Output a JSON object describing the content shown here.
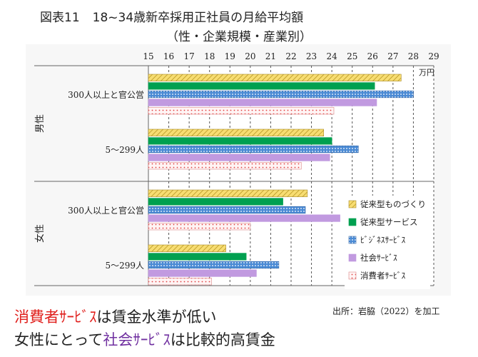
{
  "title": {
    "figure_no": "図表11",
    "main": "18~34歳新卒採用正社員の月給平均額",
    "sub": "（性・企業規模・産業別）"
  },
  "source": "出所：岩脇（2022）を加工",
  "caption": {
    "line1": {
      "highlight": "消費者ｻｰﾋﾞｽ",
      "rest": "は賃金水準が低い"
    },
    "line2": {
      "pre": "女性にとって",
      "highlight": "社会ｻｰﾋﾞｽ",
      "rest": "は比較的高賃金"
    }
  },
  "colors": {
    "highlight_red": "#e0201d",
    "highlight_purple": "#7030a0"
  },
  "chart_data": {
    "type": "bar",
    "orientation": "horizontal",
    "unit_label": "万円",
    "xlim": [
      15,
      29
    ],
    "xticks": [
      "15",
      "16",
      "17",
      "18",
      "19",
      "20",
      "21",
      "22",
      "23",
      "24",
      "25",
      "26",
      "27",
      "28",
      "29"
    ],
    "grid": "vertical dashed",
    "legend_position": "bottom-right",
    "sex_groups": [
      {
        "label": "男性",
        "categories": [
          "300人以上と官公営",
          "5～299人"
        ]
      },
      {
        "label": "女性",
        "categories": [
          "300人以上と官公営",
          "5～299人"
        ]
      }
    ],
    "series": [
      {
        "name": "従来型ものづくり",
        "color": "#f7dd72",
        "pattern": "hatch",
        "values": [
          27.4,
          23.6,
          22.8,
          18.8
        ]
      },
      {
        "name": "従来型サービス",
        "color": "#00a050",
        "pattern": "solid",
        "values": [
          26.1,
          24.0,
          21.6,
          19.8
        ]
      },
      {
        "name": "ﾋﾞｼﾞﾈｽｻｰﾋﾞｽ",
        "color": "#4a8ad4",
        "pattern": "dots",
        "values": [
          28.0,
          25.3,
          22.7,
          21.4
        ]
      },
      {
        "name": "社会ｻｰﾋﾞｽ",
        "color": "#c19ae0",
        "pattern": "solid",
        "values": [
          26.2,
          23.9,
          24.4,
          20.3
        ]
      },
      {
        "name": "消費者ｻｰﾋﾞｽ",
        "color": "#f7e0e0",
        "pattern": "redDots",
        "values": [
          24.1,
          22.5,
          20.0,
          18.1
        ]
      }
    ]
  }
}
